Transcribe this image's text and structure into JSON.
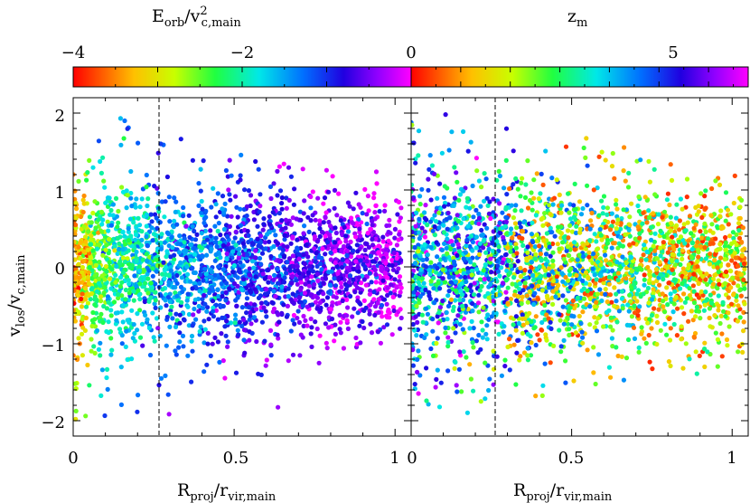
{
  "chart_data": [
    {
      "type": "scatter",
      "panel": "left",
      "colorbar": {
        "label_main": "E",
        "label_sub": "orb",
        "label_mid": "/v",
        "label_sup": "2",
        "label_sub2": "c,main",
        "range": [
          -4,
          0
        ],
        "ticks": [
          -4,
          -2,
          0
        ],
        "tick_labels": [
          "−4",
          "−2",
          "0"
        ],
        "colormap": "rainbow (red → yellow → green → cyan → blue → magenta)"
      },
      "xlabel_main": "R",
      "xlabel_sub": "proj",
      "xlabel_mid": "/r",
      "xlabel_sub2": "vir,main",
      "ylabel_main": "v",
      "ylabel_sub": "los",
      "ylabel_mid": "/v",
      "ylabel_sub2": "c,main",
      "xlim": [
        0,
        1.05
      ],
      "ylim": [
        -2.2,
        2.2
      ],
      "xticks": [
        0,
        0.5,
        1
      ],
      "xtick_labels": [
        "0",
        "0.5",
        "1"
      ],
      "yticks": [
        -2,
        -1,
        0,
        1,
        2
      ],
      "ytick_labels": [
        "−2",
        "−1",
        "0",
        "1",
        "2"
      ],
      "vline_x": 0.26,
      "vline_style": "dashed",
      "n_points_approx": 3000,
      "description_of_data": "scatter density highest near x=0; color shifts from red (-4) at small R to blue/magenta (near 0) at large R"
    },
    {
      "type": "scatter",
      "panel": "right",
      "colorbar": {
        "label_main": "z",
        "label_sub": "m",
        "range": [
          0,
          6.8
        ],
        "ticks": [
          0,
          5
        ],
        "tick_labels": [
          "0",
          "5"
        ],
        "colormap": "rainbow (red → yellow → green → cyan → blue → magenta)"
      },
      "xlabel_main": "R",
      "xlabel_sub": "proj",
      "xlabel_mid": "/r",
      "xlabel_sub2": "vir,main",
      "xlim": [
        0,
        1.05
      ],
      "ylim": [
        -2.2,
        2.2
      ],
      "xticks": [
        0,
        0.5,
        1
      ],
      "xtick_labels": [
        "0",
        "0.5",
        "1"
      ],
      "yticks": [
        -2,
        -1,
        0,
        1,
        2
      ],
      "vline_x": 0.26,
      "vline_style": "dashed",
      "n_points_approx": 3000
    }
  ]
}
